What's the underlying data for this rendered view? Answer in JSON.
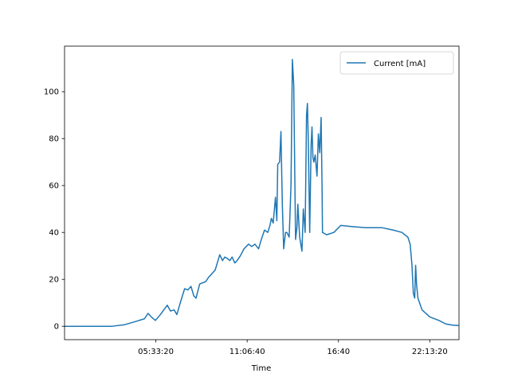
{
  "chart_data": {
    "type": "line",
    "x_label": "Time",
    "x": [
      0,
      10300,
      13000,
      15500,
      17500,
      18300,
      19000,
      19900,
      21000,
      22500,
      23200,
      24000,
      24600,
      25500,
      26300,
      27000,
      27700,
      28300,
      28800,
      29600,
      30200,
      30900,
      31600,
      32100,
      33000,
      34000,
      34600,
      35100,
      35600,
      36200,
      36700,
      37300,
      37800,
      38500,
      39300,
      40300,
      41000,
      41700,
      42500,
      43100,
      43800,
      44500,
      45000,
      45300,
      45700,
      46200,
      46500,
      46700,
      47100,
      47400,
      47700,
      48000,
      48400,
      48700,
      49200,
      49600,
      49900,
      50200,
      50600,
      50900,
      51100,
      51500,
      52000,
      52300,
      52700,
      53000,
      53200,
      53400,
      53700,
      54000,
      54200,
      54400,
      54600,
      54900,
      55300,
      55600,
      55900,
      56200,
      56400,
      56500,
      57400,
      59000,
      60500,
      63000,
      66000,
      69600,
      72000,
      73900,
      75200,
      75700,
      76100,
      76400,
      76700,
      76900,
      77100,
      77400,
      78300,
      80000,
      82000,
      83500,
      85000,
      86300
    ],
    "series": [
      {
        "name": "Current [mA]",
        "color": "#1f77b4",
        "values": [
          0,
          0,
          0.6,
          2,
          3.2,
          5.5,
          4,
          2.5,
          5,
          9,
          6.5,
          7,
          5,
          11,
          16,
          15.5,
          17,
          13,
          12,
          18,
          18.5,
          19,
          21,
          22,
          24,
          30.5,
          28,
          29.5,
          29,
          28,
          29.5,
          27,
          28,
          30,
          33,
          35,
          34,
          35,
          33,
          37,
          41,
          40,
          43,
          46,
          44,
          55,
          45,
          69,
          70,
          83,
          52,
          33,
          40,
          40,
          38,
          60,
          113.7,
          103,
          37,
          42,
          52,
          38,
          32,
          50,
          40,
          90,
          95,
          78,
          40,
          77,
          85,
          72,
          70,
          73,
          64,
          82,
          74,
          89,
          60,
          40,
          39,
          40,
          43,
          42.5,
          42,
          42,
          41,
          40,
          38,
          35,
          26,
          14,
          12,
          26,
          18,
          12,
          7,
          4,
          2.5,
          1,
          0.5,
          0.3
        ]
      }
    ],
    "xlim": [
      0,
      86400
    ],
    "ylim": [
      -5.7,
      119.4
    ],
    "xticks": [
      {
        "value": 20000,
        "label": "05:33:20"
      },
      {
        "value": 40000,
        "label": "11:06:40"
      },
      {
        "value": 60000,
        "label": "16:40"
      },
      {
        "value": 80000,
        "label": "22:13:20"
      }
    ],
    "yticks": [
      0,
      20,
      40,
      60,
      80,
      100
    ],
    "grid": false,
    "legend": "upper-right"
  }
}
